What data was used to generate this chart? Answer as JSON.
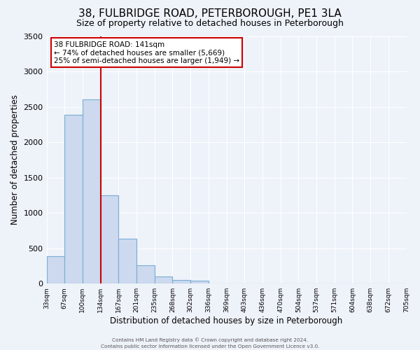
{
  "title": "38, FULBRIDGE ROAD, PETERBOROUGH, PE1 3LA",
  "subtitle": "Size of property relative to detached houses in Peterborough",
  "xlabel": "Distribution of detached houses by size in Peterborough",
  "ylabel": "Number of detached properties",
  "bar_color": "#ccd9ee",
  "bar_edge_color": "#7aadd4",
  "background_color": "#eef2f9",
  "grid_color": "#ffffff",
  "ylim": [
    0,
    3500
  ],
  "yticks": [
    0,
    500,
    1000,
    1500,
    2000,
    2500,
    3000,
    3500
  ],
  "bin_labels": [
    "33sqm",
    "67sqm",
    "100sqm",
    "134sqm",
    "167sqm",
    "201sqm",
    "235sqm",
    "268sqm",
    "302sqm",
    "336sqm",
    "369sqm",
    "403sqm",
    "436sqm",
    "470sqm",
    "504sqm",
    "537sqm",
    "571sqm",
    "604sqm",
    "638sqm",
    "672sqm",
    "705sqm"
  ],
  "bar_values": [
    390,
    2390,
    2600,
    1250,
    640,
    260,
    100,
    55,
    40,
    0,
    0,
    0,
    0,
    0,
    0,
    0,
    0,
    0,
    0,
    0
  ],
  "vline_position": 3,
  "vline_color": "#cc0000",
  "annotation_title": "38 FULBRIDGE ROAD: 141sqm",
  "annotation_line1": "← 74% of detached houses are smaller (5,669)",
  "annotation_line2": "25% of semi-detached houses are larger (1,949) →",
  "annotation_box_color": "#cc0000",
  "footer1": "Contains HM Land Registry data © Crown copyright and database right 2024.",
  "footer2": "Contains public sector information licensed under the Open Government Licence v3.0.",
  "title_fontsize": 11,
  "subtitle_fontsize": 9,
  "n_bins": 20
}
